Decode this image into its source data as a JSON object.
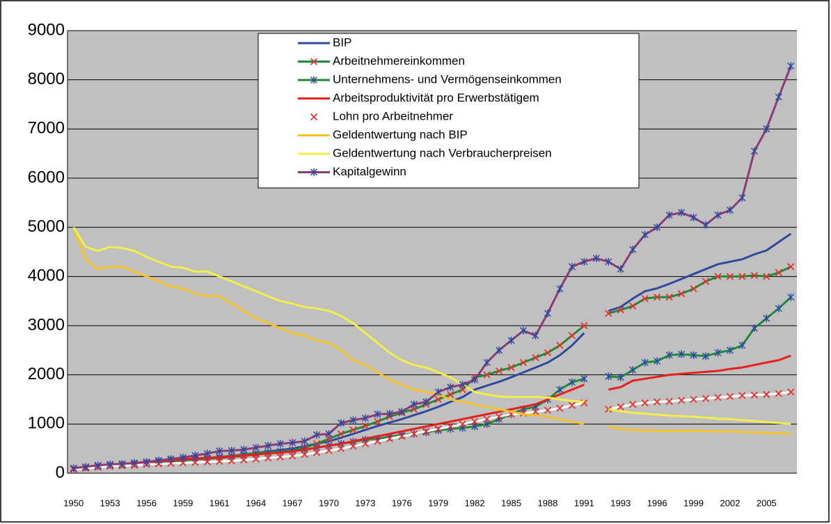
{
  "chart_data": {
    "type": "line",
    "categories": [
      "1950",
      null,
      null,
      "1953",
      null,
      null,
      "1956",
      null,
      null,
      "1959",
      null,
      null,
      "1961",
      null,
      null,
      "1964",
      null,
      null,
      "1967",
      null,
      null,
      "1970",
      null,
      null,
      "1973",
      null,
      null,
      "1976",
      null,
      null,
      "1979",
      null,
      null,
      "1982",
      null,
      null,
      "1985",
      null,
      null,
      "1988",
      null,
      null,
      "1991",
      null,
      null,
      "1993",
      null,
      null,
      "1996",
      null,
      null,
      "1999",
      null,
      null,
      "2002",
      null,
      null,
      "2005",
      null,
      null
    ],
    "ylim": [
      0,
      9000
    ],
    "yticks": [
      0,
      1000,
      2000,
      3000,
      4000,
      5000,
      6000,
      7000,
      8000,
      9000
    ],
    "grid": true,
    "series": [
      {
        "name": "BIP",
        "color": "#2e4a9e",
        "marker": "none",
        "values": [
          100,
          120,
          140,
          160,
          180,
          200,
          220,
          240,
          260,
          280,
          300,
          310,
          330,
          350,
          380,
          410,
          440,
          470,
          500,
          550,
          600,
          650,
          720,
          800,
          880,
          960,
          1030,
          1100,
          1180,
          1260,
          1350,
          1450,
          1550,
          1700,
          1780,
          1860,
          1950,
          2050,
          2150,
          2250,
          2400,
          2600,
          2850,
          null,
          3300,
          3380,
          3550,
          3700,
          3760,
          3850,
          3950,
          4050,
          4150,
          4250,
          4300,
          4350,
          4450,
          4530,
          4700,
          4870
        ]
      },
      {
        "name": "Arbeitnehmereinkommen",
        "color": "#1f8a3a",
        "marker": "x",
        "marker_color": "#e8302a",
        "values": [
          100,
          110,
          130,
          150,
          160,
          180,
          200,
          220,
          240,
          260,
          280,
          290,
          310,
          330,
          350,
          380,
          410,
          440,
          470,
          520,
          600,
          700,
          800,
          880,
          960,
          1050,
          1150,
          1230,
          1300,
          1400,
          1500,
          1600,
          1700,
          1950,
          2000,
          2080,
          2150,
          2250,
          2350,
          2450,
          2600,
          2800,
          3000,
          null,
          3250,
          3320,
          3400,
          3550,
          3580,
          3580,
          3650,
          3750,
          3900,
          4000,
          4000,
          4000,
          4020,
          4000,
          4080,
          4200
        ]
      },
      {
        "name": "Unternehmens- und Vermögenseinkommen",
        "color": "#1f8a3a",
        "marker": "star",
        "marker_color": "#2e4a9e",
        "values": [
          100,
          120,
          150,
          170,
          180,
          200,
          220,
          240,
          260,
          280,
          300,
          310,
          330,
          350,
          380,
          400,
          420,
          440,
          460,
          480,
          520,
          560,
          600,
          640,
          680,
          700,
          740,
          780,
          800,
          830,
          870,
          900,
          920,
          950,
          1000,
          1100,
          1200,
          1300,
          1350,
          1500,
          1700,
          1850,
          1920,
          null,
          1970,
          1950,
          2100,
          2250,
          2280,
          2400,
          2420,
          2400,
          2380,
          2450,
          2500,
          2600,
          2950,
          3150,
          3350,
          3580
        ]
      },
      {
        "name": "Arbeitsproduktivität pro Erwerbstätigem",
        "color": "#e8201c",
        "marker": "none",
        "values": [
          100,
          120,
          140,
          160,
          180,
          200,
          220,
          240,
          260,
          280,
          300,
          310,
          320,
          340,
          360,
          380,
          400,
          420,
          440,
          480,
          520,
          560,
          600,
          650,
          700,
          750,
          800,
          850,
          900,
          950,
          1000,
          1050,
          1100,
          1150,
          1200,
          1250,
          1300,
          1350,
          1400,
          1500,
          1600,
          1700,
          1800,
          null,
          1700,
          1750,
          1880,
          1920,
          1960,
          2000,
          2020,
          2040,
          2060,
          2080,
          2120,
          2150,
          2200,
          2250,
          2300,
          2390
        ]
      },
      {
        "name": "Lohn pro Arbeitnehmer",
        "color": "#ffffff",
        "marker": "x",
        "marker_color": "#e8302a",
        "values": [
          80,
          100,
          120,
          140,
          150,
          160,
          180,
          190,
          200,
          210,
          220,
          230,
          240,
          250,
          270,
          290,
          310,
          330,
          350,
          380,
          420,
          460,
          500,
          550,
          600,
          650,
          700,
          750,
          800,
          850,
          900,
          950,
          1000,
          1050,
          1100,
          1150,
          1200,
          1220,
          1250,
          1280,
          1320,
          1380,
          1430,
          null,
          1300,
          1350,
          1400,
          1430,
          1450,
          1460,
          1480,
          1500,
          1520,
          1540,
          1560,
          1580,
          1590,
          1600,
          1620,
          1650
        ]
      },
      {
        "name": "Geldentwertung nach BIP",
        "color": "#f5c22a",
        "marker": "none",
        "values": [
          5000,
          4350,
          4150,
          4200,
          4200,
          4100,
          4000,
          3900,
          3800,
          3750,
          3650,
          3600,
          3600,
          3450,
          3300,
          3150,
          3050,
          2950,
          2850,
          2800,
          2700,
          2650,
          2500,
          2300,
          2200,
          2050,
          1900,
          1800,
          1700,
          1650,
          1600,
          1500,
          1450,
          1400,
          1350,
          1300,
          1250,
          1200,
          1180,
          1150,
          1100,
          1050,
          1000,
          null,
          950,
          900,
          880,
          870,
          860,
          860,
          860,
          860,
          860,
          850,
          850,
          840,
          830,
          820,
          810,
          800
        ]
      },
      {
        "name": "Geldentwertung nach Verbraucherpreisen",
        "color": "#f2ee4a",
        "marker": "none",
        "values": [
          5000,
          4600,
          4520,
          4600,
          4580,
          4520,
          4400,
          4300,
          4200,
          4180,
          4100,
          4100,
          4000,
          3900,
          3800,
          3700,
          3600,
          3500,
          3450,
          3380,
          3350,
          3300,
          3200,
          3050,
          2850,
          2650,
          2450,
          2300,
          2200,
          2150,
          2050,
          1950,
          1800,
          1650,
          1600,
          1560,
          1550,
          1550,
          1550,
          1540,
          1500,
          1470,
          1450,
          null,
          1300,
          1260,
          1230,
          1210,
          1190,
          1170,
          1160,
          1150,
          1130,
          1110,
          1100,
          1080,
          1060,
          1040,
          1020,
          1000
        ]
      },
      {
        "name": "Kapitalgewinn",
        "color": "#8b3a78",
        "marker": "star",
        "marker_color": "#2e4a9e",
        "values": [
          100,
          130,
          160,
          180,
          190,
          210,
          230,
          260,
          290,
          320,
          360,
          400,
          450,
          460,
          480,
          520,
          560,
          600,
          620,
          650,
          780,
          800,
          1020,
          1080,
          1120,
          1200,
          1210,
          1250,
          1400,
          1450,
          1650,
          1750,
          1800,
          1900,
          2250,
          2500,
          2700,
          2900,
          2800,
          3250,
          3750,
          4200,
          4300,
          4370,
          4300,
          4150,
          4550,
          4850,
          5000,
          5250,
          5300,
          5200,
          5050,
          5250,
          5350,
          5600,
          6550,
          7000,
          7650,
          8280
        ]
      }
    ]
  }
}
